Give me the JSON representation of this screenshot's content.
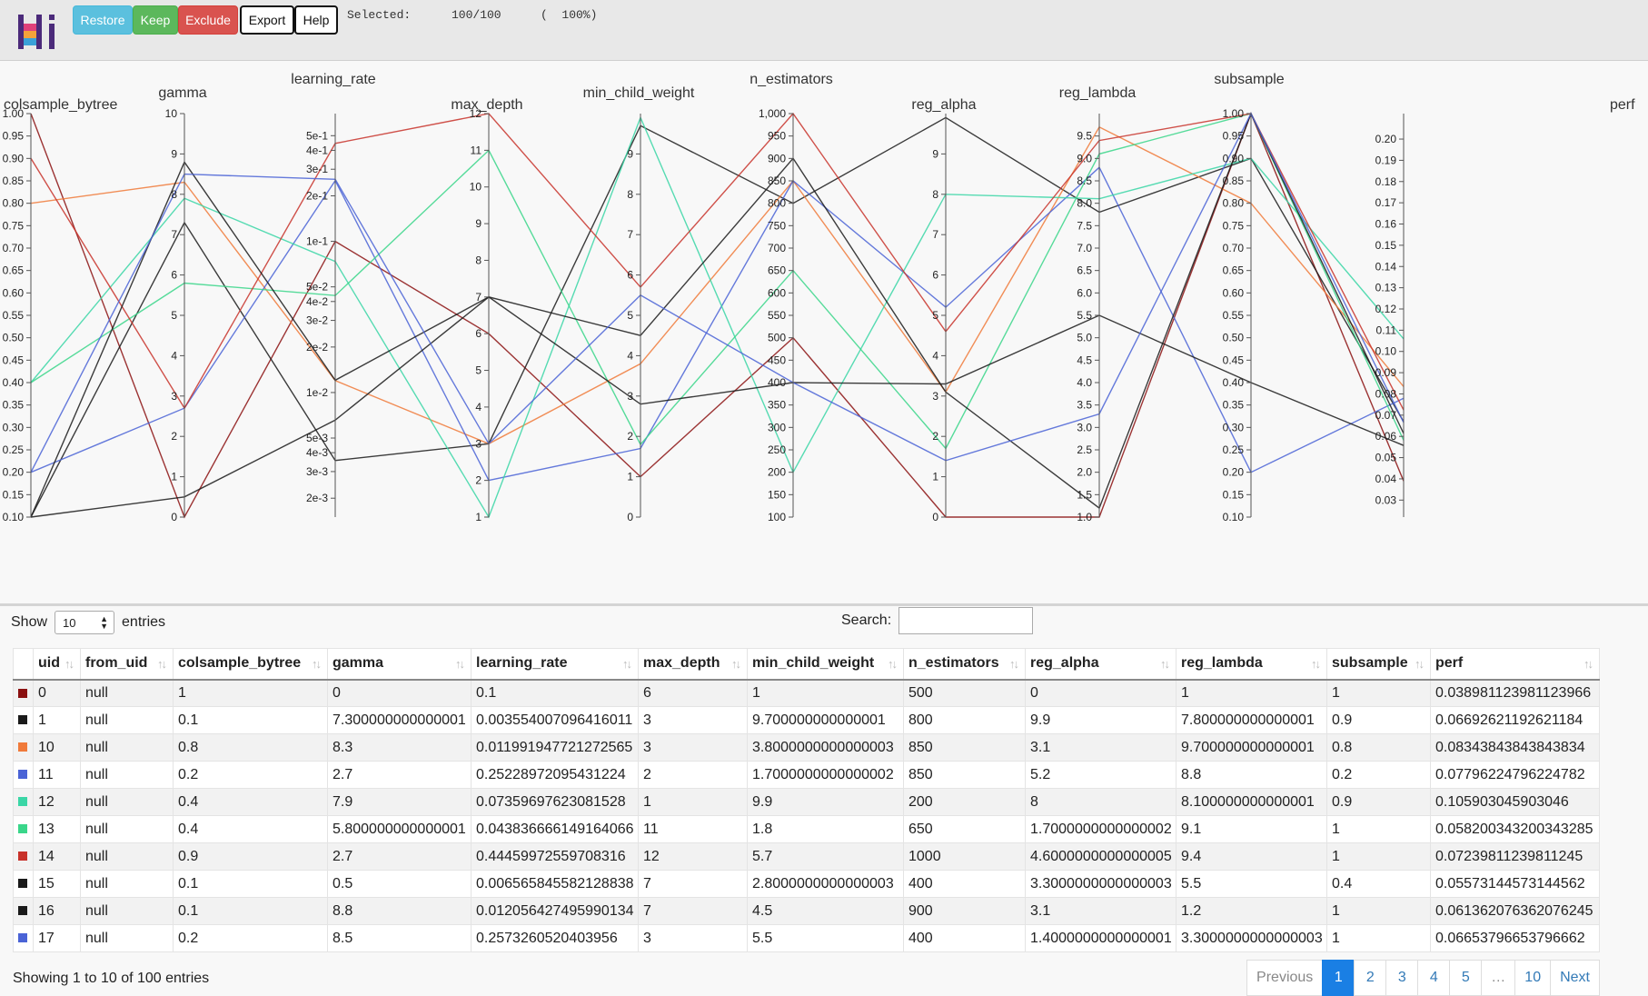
{
  "toolbar": {
    "restore": "Restore",
    "keep": "Keep",
    "exclude": "Exclude",
    "export": "Export",
    "help": "Help",
    "selected_label": "Selected:",
    "selected_count": "100/100",
    "selected_pct": "(  100%)"
  },
  "colors": {
    "restore": "#5bc0de",
    "keep": "#5cb85c",
    "exclude": "#d9534f",
    "page_active": "#1a7fe4"
  },
  "chart_data": {
    "type": "parallel_coordinates",
    "axes": [
      {
        "name": "colsample_bytree",
        "ticks": [
          "1.00",
          "0.95",
          "0.90",
          "0.85",
          "0.80",
          "0.75",
          "0.70",
          "0.65",
          "0.60",
          "0.55",
          "0.50",
          "0.45",
          "0.40",
          "0.35",
          "0.30",
          "0.25",
          "0.20",
          "0.15",
          "0.10"
        ],
        "range": [
          0.1,
          1.0
        ]
      },
      {
        "name": "gamma",
        "ticks": [
          "10",
          "9",
          "8",
          "7",
          "6",
          "5",
          "4",
          "3",
          "2",
          "1",
          "0"
        ],
        "range": [
          0,
          10
        ]
      },
      {
        "name": "learning_rate",
        "scale": "log",
        "ticks": [
          "5e-1",
          "4e-1",
          "3e-1",
          "2e-1",
          "1e-1",
          "5e-2",
          "4e-2",
          "3e-2",
          "2e-2",
          "1e-2",
          "5e-3",
          "4e-3",
          "3e-3",
          "2e-3"
        ],
        "range": [
          0.0015,
          0.7
        ]
      },
      {
        "name": "max_depth",
        "ticks": [
          "12",
          "11",
          "10",
          "9",
          "8",
          "7",
          "6",
          "5",
          "4",
          "3",
          "2",
          "1"
        ],
        "range": [
          1,
          12
        ]
      },
      {
        "name": "min_child_weight",
        "ticks": [
          "9",
          "8",
          "7",
          "6",
          "5",
          "4",
          "3",
          "2",
          "1",
          "0"
        ],
        "range": [
          0,
          10
        ]
      },
      {
        "name": "n_estimators",
        "ticks": [
          "1,000",
          "950",
          "900",
          "850",
          "800",
          "750",
          "700",
          "650",
          "600",
          "550",
          "500",
          "450",
          "400",
          "350",
          "300",
          "250",
          "200",
          "150",
          "100"
        ],
        "range": [
          100,
          1000
        ]
      },
      {
        "name": "reg_alpha",
        "ticks": [
          "9",
          "8",
          "7",
          "6",
          "5",
          "4",
          "3",
          "2",
          "1",
          "0"
        ],
        "range": [
          0,
          10
        ]
      },
      {
        "name": "reg_lambda",
        "ticks": [
          "9.5",
          "9.0",
          "8.5",
          "8.0",
          "7.5",
          "7.0",
          "6.5",
          "6.0",
          "5.5",
          "5.0",
          "4.5",
          "4.0",
          "3.5",
          "3.0",
          "2.5",
          "2.0",
          "1.5",
          "1.0"
        ],
        "range": [
          1,
          10
        ]
      },
      {
        "name": "subsample",
        "ticks": [
          "1.00",
          "0.95",
          "0.90",
          "0.85",
          "0.80",
          "0.75",
          "0.70",
          "0.65",
          "0.60",
          "0.55",
          "0.50",
          "0.45",
          "0.40",
          "0.35",
          "0.30",
          "0.25",
          "0.20",
          "0.15",
          "0.10"
        ],
        "range": [
          0.1,
          1.0
        ]
      },
      {
        "name": "perf",
        "ticks": [
          "0.20",
          "0.19",
          "0.18",
          "0.17",
          "0.16",
          "0.15",
          "0.14",
          "0.13",
          "0.12",
          "0.11",
          "0.10",
          "0.09",
          "0.08",
          "0.07",
          "0.06",
          "0.05",
          "0.04",
          "0.03"
        ],
        "range": [
          0.022,
          0.212
        ]
      }
    ],
    "series": [
      {
        "color": "#8b1010",
        "values": [
          1,
          0,
          0.1,
          6,
          1,
          500,
          0,
          1,
          1,
          0.038981123981123966
        ]
      },
      {
        "color": "#1a1a1a",
        "values": [
          0.1,
          7.300000000000001,
          0.003554007096416011,
          3,
          9.700000000000001,
          800,
          9.9,
          7.800000000000001,
          0.9,
          0.06692621192621184
        ]
      },
      {
        "color": "#f07a3a",
        "values": [
          0.8,
          8.3,
          0.011991947721272565,
          3,
          3.8000000000000003,
          850,
          3.1,
          9.700000000000001,
          0.8,
          0.08343843843843834
        ]
      },
      {
        "color": "#4a63d6",
        "values": [
          0.2,
          2.7,
          0.25228972095431224,
          2,
          1.7000000000000002,
          850,
          5.2,
          8.8,
          0.2,
          0.07796224796224782
        ]
      },
      {
        "color": "#3ad6a6",
        "values": [
          0.4,
          7.9,
          0.07359697623081528,
          1,
          9.9,
          200,
          8,
          8.100000000000001,
          0.9,
          0.105903045903046
        ]
      },
      {
        "color": "#3ad68a",
        "values": [
          0.4,
          5.800000000000001,
          0.043836666149164066,
          11,
          1.8,
          650,
          1.7000000000000002,
          9.1,
          1,
          0.058200343200343285
        ]
      },
      {
        "color": "#c8322a",
        "values": [
          0.9,
          2.7,
          0.44459972559708316,
          12,
          5.7,
          1000,
          4.6000000000000005,
          9.4,
          1,
          0.07239811239811245
        ]
      },
      {
        "color": "#1a1a1a",
        "values": [
          0.1,
          0.5,
          0.006565845582128838,
          7,
          2.8000000000000003,
          400,
          3.3000000000000003,
          5.5,
          0.4,
          0.05573144573144562
        ]
      },
      {
        "color": "#1a1a1a",
        "values": [
          0.1,
          8.8,
          0.012056427495990134,
          7,
          4.5,
          900,
          3.1,
          1.2,
          1,
          0.061362076362076245
        ]
      },
      {
        "color": "#4a63d6",
        "values": [
          0.2,
          8.5,
          0.2573260520403956,
          3,
          5.5,
          400,
          1.4000000000000001,
          3.3000000000000003,
          1,
          0.06653796653796662
        ]
      }
    ]
  },
  "controls": {
    "show_label": "Show",
    "length_value": "10",
    "entries_label": "entries",
    "search_label": "Search:",
    "search_value": ""
  },
  "table": {
    "columns": [
      "uid",
      "from_uid",
      "colsample_bytree",
      "gamma",
      "learning_rate",
      "max_depth",
      "min_child_weight",
      "n_estimators",
      "reg_alpha",
      "reg_lambda",
      "subsample",
      "perf"
    ],
    "rows": [
      {
        "color": "#8b1010",
        "cells": [
          "0",
          "null",
          "1",
          "0",
          "0.1",
          "6",
          "1",
          "500",
          "0",
          "1",
          "1",
          "0.038981123981123966"
        ]
      },
      {
        "color": "#1a1a1a",
        "cells": [
          "1",
          "null",
          "0.1",
          "7.300000000000001",
          "0.003554007096416011",
          "3",
          "9.700000000000001",
          "800",
          "9.9",
          "7.800000000000001",
          "0.9",
          "0.06692621192621184"
        ]
      },
      {
        "color": "#f07a3a",
        "cells": [
          "10",
          "null",
          "0.8",
          "8.3",
          "0.011991947721272565",
          "3",
          "3.8000000000000003",
          "850",
          "3.1",
          "9.700000000000001",
          "0.8",
          "0.08343843843843834"
        ]
      },
      {
        "color": "#4a63d6",
        "cells": [
          "11",
          "null",
          "0.2",
          "2.7",
          "0.25228972095431224",
          "2",
          "1.7000000000000002",
          "850",
          "5.2",
          "8.8",
          "0.2",
          "0.07796224796224782"
        ]
      },
      {
        "color": "#3ad6a6",
        "cells": [
          "12",
          "null",
          "0.4",
          "7.9",
          "0.07359697623081528",
          "1",
          "9.9",
          "200",
          "8",
          "8.100000000000001",
          "0.9",
          "0.105903045903046"
        ]
      },
      {
        "color": "#3ad68a",
        "cells": [
          "13",
          "null",
          "0.4",
          "5.800000000000001",
          "0.043836666149164066",
          "11",
          "1.8",
          "650",
          "1.7000000000000002",
          "9.1",
          "1",
          "0.058200343200343285"
        ]
      },
      {
        "color": "#c8322a",
        "cells": [
          "14",
          "null",
          "0.9",
          "2.7",
          "0.44459972559708316",
          "12",
          "5.7",
          "1000",
          "4.6000000000000005",
          "9.4",
          "1",
          "0.07239811239811245"
        ]
      },
      {
        "color": "#1a1a1a",
        "cells": [
          "15",
          "null",
          "0.1",
          "0.5",
          "0.006565845582128838",
          "7",
          "2.8000000000000003",
          "400",
          "3.3000000000000003",
          "5.5",
          "0.4",
          "0.05573144573144562"
        ]
      },
      {
        "color": "#1a1a1a",
        "cells": [
          "16",
          "null",
          "0.1",
          "8.8",
          "0.012056427495990134",
          "7",
          "4.5",
          "900",
          "3.1",
          "1.2",
          "1",
          "0.061362076362076245"
        ]
      },
      {
        "color": "#4a63d6",
        "cells": [
          "17",
          "null",
          "0.2",
          "8.5",
          "0.2573260520403956",
          "3",
          "5.5",
          "400",
          "1.4000000000000001",
          "3.3000000000000003",
          "1",
          "0.06653796653796662"
        ]
      }
    ]
  },
  "footer": {
    "info": "Showing 1 to 10 of 100 entries",
    "pages": [
      "Previous",
      "1",
      "2",
      "3",
      "4",
      "5",
      "…",
      "10",
      "Next"
    ],
    "active_page": "1"
  }
}
